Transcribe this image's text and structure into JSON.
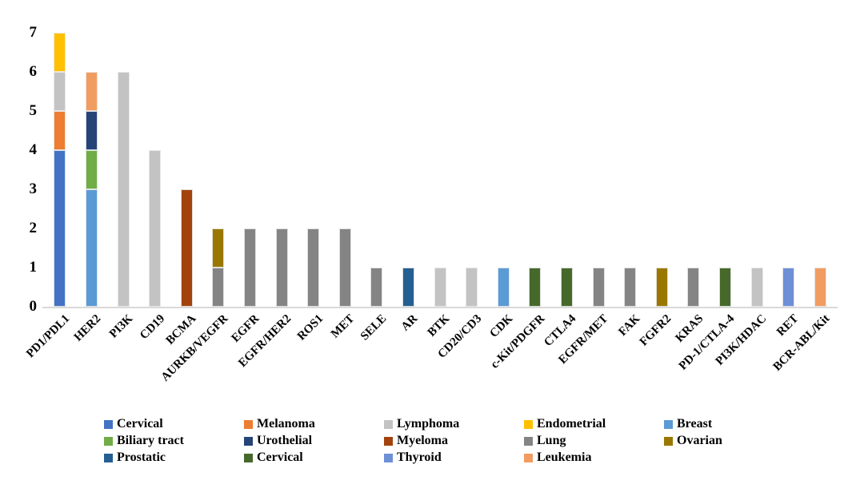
{
  "chart_data": {
    "type": "bar",
    "stacked": true,
    "title": "",
    "xlabel": "",
    "ylabel": "",
    "ylim": [
      0,
      7
    ],
    "yticks": [
      0,
      1,
      2,
      3,
      4,
      5,
      6,
      7
    ],
    "grid": false,
    "legend_position": "bottom",
    "legend_columns": 5,
    "axis_line_color": "#D9D9D9",
    "categories": [
      "PD1/PDL1",
      "HER2",
      "PI3K",
      "CD19",
      "BCMA",
      "AURKB/VEGFR",
      "EGFR",
      "EGFR/HER2",
      "ROS1",
      "MET",
      "SELE",
      "AR",
      "BTK",
      "CD20/CD3",
      "CDK",
      "c-Kit/PDGFR",
      "CTLA4",
      "EGFR/MET",
      "FAK",
      "FGFR2",
      "KRAS",
      "PD-1/CTLA-4",
      "PI3K/HDAC",
      "RET",
      "BCR-ABL/Kit"
    ],
    "series": [
      {
        "name": "Cervical",
        "color": "#4472C4",
        "values": [
          4,
          0,
          0,
          0,
          0,
          0,
          0,
          0,
          0,
          0,
          0,
          0,
          0,
          0,
          0,
          0,
          0,
          0,
          0,
          0,
          0,
          0,
          0,
          0,
          0
        ]
      },
      {
        "name": "Melanoma",
        "color": "#ED7D31",
        "values": [
          1,
          0,
          0,
          0,
          0,
          0,
          0,
          0,
          0,
          0,
          0,
          0,
          0,
          0,
          0,
          0,
          0,
          0,
          0,
          0,
          0,
          0,
          0,
          0,
          0
        ]
      },
      {
        "name": "Lymphoma",
        "color": "#C3C3C3",
        "values": [
          1,
          0,
          6,
          4,
          0,
          0,
          0,
          0,
          0,
          0,
          0,
          0,
          1,
          1,
          0,
          0,
          0,
          0,
          0,
          0,
          0,
          0,
          1,
          0,
          0
        ]
      },
      {
        "name": "Endometrial",
        "color": "#FFC000",
        "values": [
          1,
          0,
          0,
          0,
          0,
          0,
          0,
          0,
          0,
          0,
          0,
          0,
          0,
          0,
          0,
          0,
          0,
          0,
          0,
          0,
          0,
          0,
          0,
          0,
          0
        ]
      },
      {
        "name": "Breast",
        "color": "#5B9BD5",
        "values": [
          0,
          3,
          0,
          0,
          0,
          0,
          0,
          0,
          0,
          0,
          0,
          0,
          0,
          0,
          1,
          0,
          0,
          0,
          0,
          0,
          0,
          0,
          0,
          0,
          0
        ]
      },
      {
        "name": "Biliary tract",
        "color": "#70AD47",
        "values": [
          0,
          1,
          0,
          0,
          0,
          0,
          0,
          0,
          0,
          0,
          0,
          0,
          0,
          0,
          0,
          0,
          0,
          0,
          0,
          0,
          0,
          0,
          0,
          0,
          0
        ]
      },
      {
        "name": "Urothelial",
        "color": "#264478",
        "values": [
          0,
          1,
          0,
          0,
          0,
          0,
          0,
          0,
          0,
          0,
          0,
          0,
          0,
          0,
          0,
          0,
          0,
          0,
          0,
          0,
          0,
          0,
          0,
          0,
          0
        ]
      },
      {
        "name": "Myeloma",
        "color": "#A2430D",
        "values": [
          0,
          0,
          0,
          0,
          3,
          0,
          0,
          0,
          0,
          0,
          0,
          0,
          0,
          0,
          0,
          0,
          0,
          0,
          0,
          0,
          0,
          0,
          0,
          0,
          0
        ]
      },
      {
        "name": "Lung",
        "color": "#848484",
        "values": [
          0,
          0,
          0,
          0,
          0,
          1,
          2,
          2,
          2,
          2,
          1,
          0,
          0,
          0,
          0,
          0,
          0,
          1,
          1,
          0,
          1,
          0,
          0,
          0,
          0
        ]
      },
      {
        "name": "Ovarian",
        "color": "#9A7700",
        "values": [
          0,
          0,
          0,
          0,
          0,
          1,
          0,
          0,
          0,
          0,
          0,
          0,
          0,
          0,
          0,
          0,
          0,
          0,
          0,
          1,
          0,
          0,
          0,
          0,
          0
        ]
      },
      {
        "name": "Prostatic",
        "color": "#255E91",
        "values": [
          0,
          0,
          0,
          0,
          0,
          0,
          0,
          0,
          0,
          0,
          0,
          1,
          0,
          0,
          0,
          0,
          0,
          0,
          0,
          0,
          0,
          0,
          0,
          0,
          0
        ]
      },
      {
        "name": "Cervical",
        "color": "#46692B",
        "values": [
          0,
          0,
          0,
          0,
          0,
          0,
          0,
          0,
          0,
          0,
          0,
          0,
          0,
          0,
          0,
          1,
          1,
          0,
          0,
          0,
          0,
          1,
          0,
          0,
          0
        ]
      },
      {
        "name": "Thyroid",
        "color": "#6D8FD6",
        "values": [
          0,
          0,
          0,
          0,
          0,
          0,
          0,
          0,
          0,
          0,
          0,
          0,
          0,
          0,
          0,
          0,
          0,
          0,
          0,
          0,
          0,
          0,
          0,
          1,
          0
        ]
      },
      {
        "name": "Leukemia",
        "color": "#F19D62",
        "values": [
          0,
          1,
          0,
          0,
          0,
          0,
          0,
          0,
          0,
          0,
          0,
          0,
          0,
          0,
          0,
          0,
          0,
          0,
          0,
          0,
          0,
          0,
          0,
          0,
          1
        ]
      }
    ]
  }
}
